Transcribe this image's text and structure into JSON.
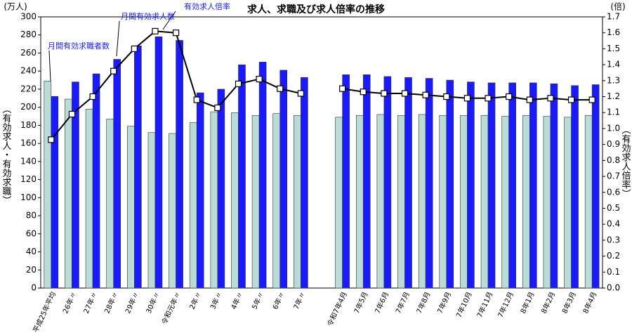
{
  "chart_data": {
    "type": "bar_line",
    "title": "求人、求職及び求人倍率の推移",
    "y_label": "(万人)",
    "y2_label": "(倍)",
    "y_axis_title": "（有効求人・有効求職）",
    "y2_axis_title": "（有効求人倍率）",
    "categories": [
      "平成25年平均",
      "26年〃",
      "27年〃",
      "28年〃",
      "29年〃",
      "30年〃",
      "令和元年〃",
      "2年〃",
      "3年〃",
      "4年〃",
      "5年〃",
      "6年〃",
      "7年〃",
      null,
      "令和7年4月",
      "7年5月",
      "7年6月",
      "7年7月",
      "7年8月",
      "7年9月",
      "7年10月",
      "7年11月",
      "7年12月",
      "8年1月",
      "8年2月",
      "8年3月",
      "8年4月"
    ],
    "series": [
      {
        "name": "月間有効求職者数",
        "type": "bar",
        "color": "#b9ddd6",
        "values": [
          229,
          209,
          198,
          187,
          179,
          172,
          171,
          183,
          195,
          194,
          191,
          193,
          191,
          null,
          189,
          191,
          192,
          191,
          192,
          191,
          191,
          191,
          190,
          191,
          190,
          189,
          191
        ]
      },
      {
        "name": "月間有効求人数",
        "type": "bar",
        "color": "#1a1aff",
        "values": [
          212,
          228,
          237,
          253,
          268,
          278,
          274,
          216,
          220,
          247,
          250,
          241,
          233,
          null,
          236,
          236,
          234,
          233,
          232,
          230,
          228,
          227,
          227,
          227,
          226,
          224,
          225
        ]
      },
      {
        "name": "有効求人倍率",
        "type": "line",
        "axis": "y2",
        "color": "#000000",
        "values": [
          0.93,
          1.09,
          1.2,
          1.36,
          1.5,
          1.61,
          1.6,
          1.18,
          1.13,
          1.28,
          1.31,
          1.25,
          1.22,
          null,
          1.25,
          1.23,
          1.22,
          1.22,
          1.21,
          1.2,
          1.19,
          1.19,
          1.2,
          1.18,
          1.19,
          1.18,
          1.18
        ]
      }
    ],
    "ylim": [
      0,
      300
    ],
    "yticks": [
      0,
      20,
      40,
      60,
      80,
      100,
      120,
      140,
      160,
      180,
      200,
      220,
      240,
      260,
      280,
      300
    ],
    "y2lim": [
      0,
      1.7
    ],
    "y2ticks": [
      {
        "value": 0,
        "label": "0.0"
      },
      0.1,
      0.2,
      0.3,
      0.4,
      0.5,
      0.6,
      0.7,
      0.8,
      0.9,
      {
        "value": 1,
        "label": "1.0"
      },
      1.1,
      1.2,
      1.3,
      1.4,
      1.5,
      1.6,
      1.7
    ]
  }
}
